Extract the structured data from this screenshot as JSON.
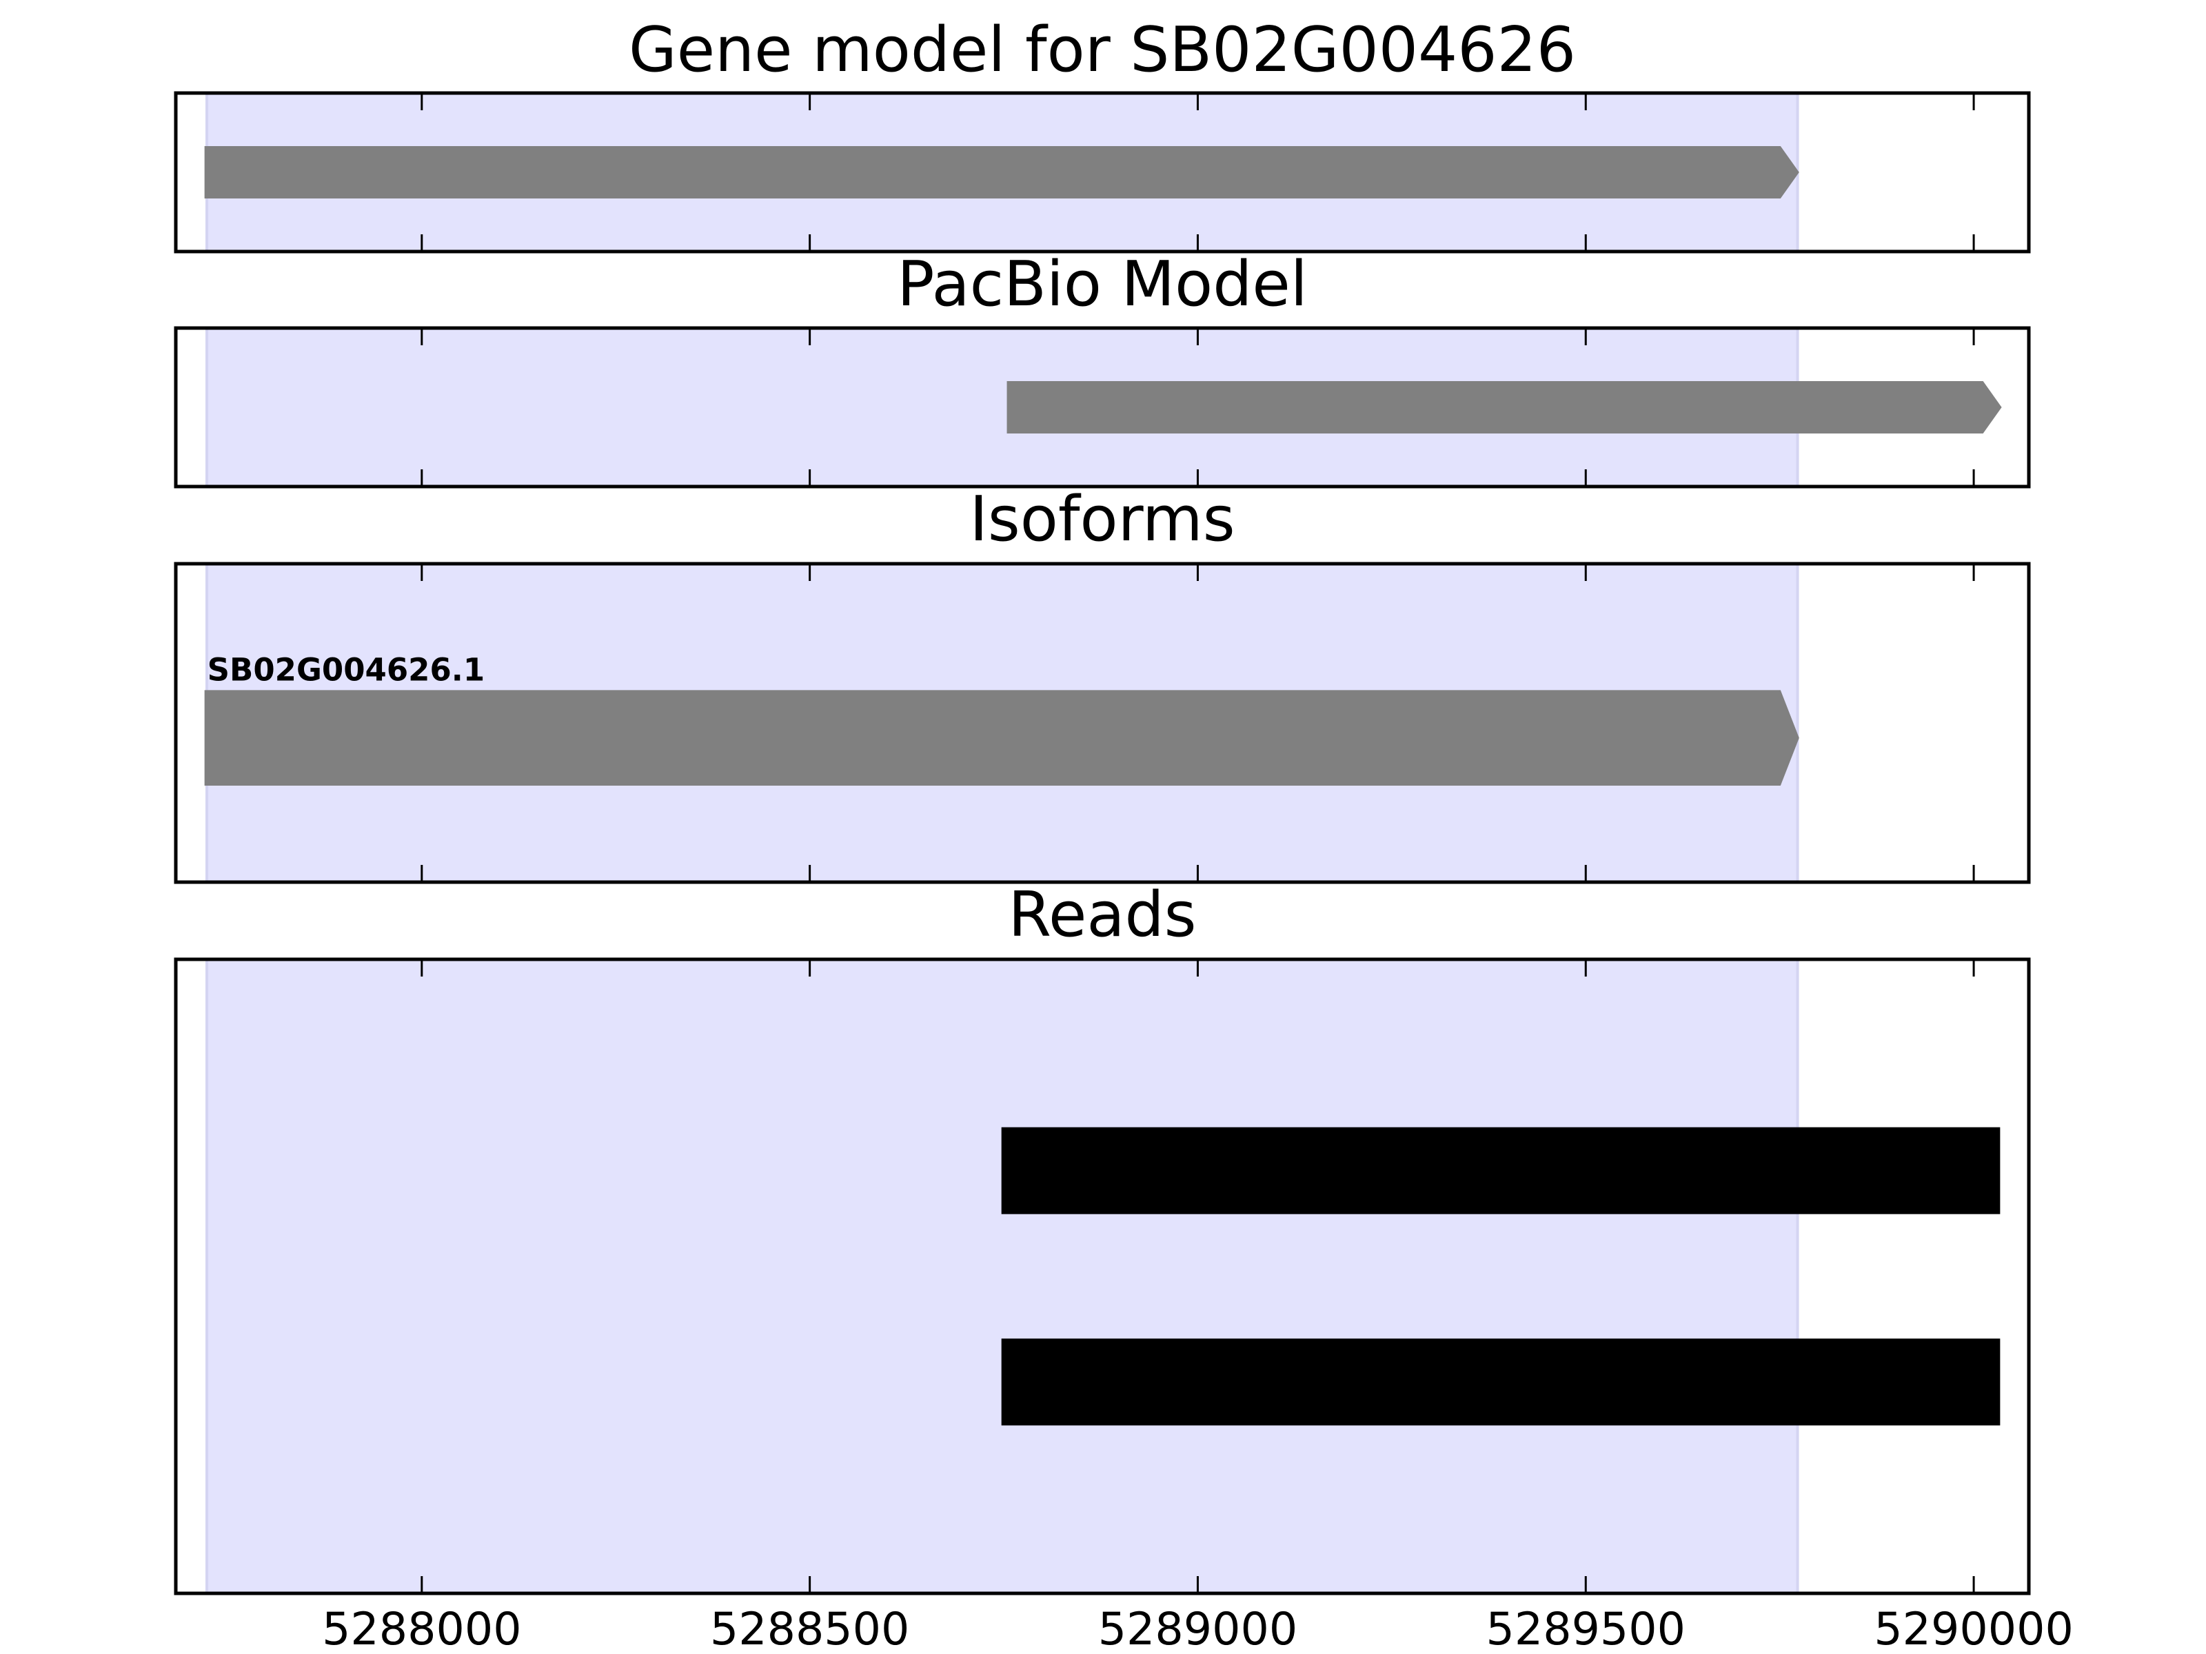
{
  "chart_data": [
    {
      "type": "track",
      "title": "Gene model for SB02G004626",
      "xlim": [
        5287683,
        5290071
      ],
      "xticks": [
        5288000,
        5288500,
        5289000,
        5289500,
        5290000
      ],
      "highlight": [
        5287723,
        5289773
      ],
      "highlight_color": "#e3e3fd",
      "color": "#808080",
      "arrow": true,
      "features": [
        {
          "start": 5287720,
          "end": 5289775
        }
      ]
    },
    {
      "type": "track",
      "title": "PacBio Model",
      "xlim": [
        5287683,
        5290071
      ],
      "xticks": [
        5288000,
        5288500,
        5289000,
        5289500,
        5290000
      ],
      "highlight": [
        5287723,
        5289773
      ],
      "highlight_color": "#e3e3fd",
      "color": "#808080",
      "arrow": true,
      "features": [
        {
          "start": 5288754,
          "end": 5290036
        }
      ]
    },
    {
      "type": "track",
      "title": "Isoforms",
      "xlim": [
        5287683,
        5290071
      ],
      "xticks": [
        5288000,
        5288500,
        5289000,
        5289500,
        5290000
      ],
      "highlight": [
        5287723,
        5289773
      ],
      "highlight_color": "#e3e3fd",
      "color": "#808080",
      "arrow": true,
      "features": [
        {
          "start": 5287720,
          "end": 5289775,
          "label": "SB02G004626.1"
        }
      ]
    },
    {
      "type": "track",
      "title": "Reads",
      "xlim": [
        5287683,
        5290071
      ],
      "xticks": [
        5288000,
        5288500,
        5289000,
        5289500,
        5290000
      ],
      "highlight": [
        5287723,
        5289773
      ],
      "highlight_color": "#e3e3fd",
      "color": "#000000",
      "arrow": false,
      "tick_labels": true,
      "features": [
        {
          "start": 5288747,
          "end": 5290034
        },
        {
          "start": 5288747,
          "end": 5290034
        }
      ]
    }
  ]
}
